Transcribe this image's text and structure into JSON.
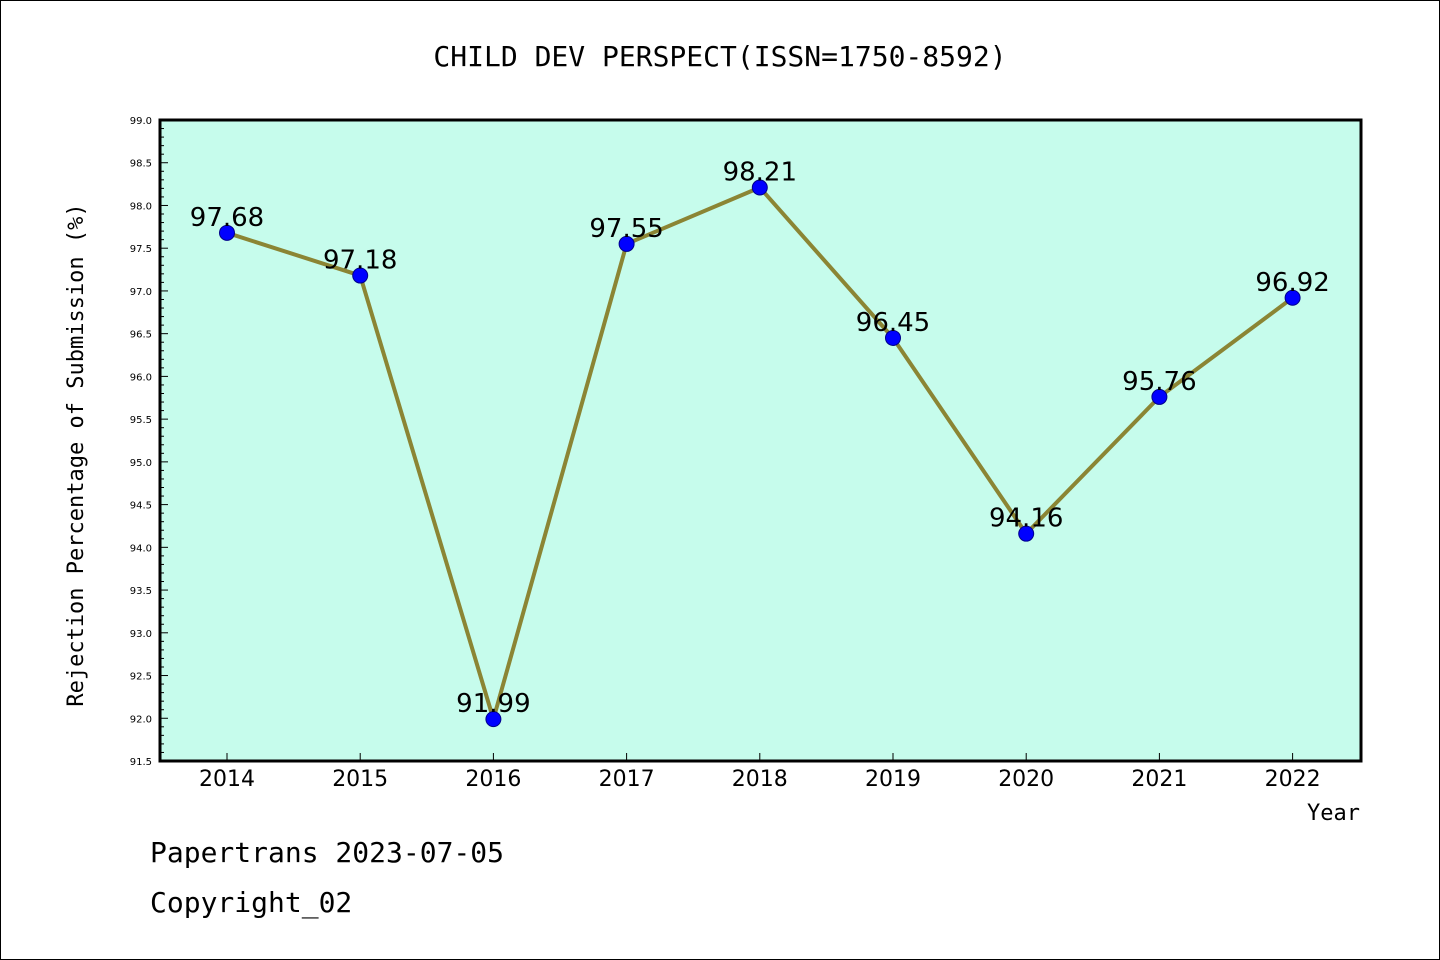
{
  "colors": {
    "plot_background": "#c6fcec",
    "line": "#8b8534",
    "marker": "#0000ff",
    "marker_edge": "#00008b",
    "axis": "#000000"
  },
  "chart_data": {
    "type": "line",
    "title": "CHILD DEV PERSPECT(ISSN=1750-8592)",
    "xlabel": "Year",
    "ylabel": "Rejection Percentage of Submission (%)",
    "categories": [
      "2014",
      "2015",
      "2016",
      "2017",
      "2018",
      "2019",
      "2020",
      "2021",
      "2022"
    ],
    "series": [
      {
        "values": [
          97.68,
          97.18,
          91.99,
          97.55,
          98.21,
          96.45,
          94.16,
          95.76,
          96.92
        ],
        "data_labels": [
          "97.68",
          "97.18",
          "91.99",
          "97.55",
          "98.21",
          "96.45",
          "94.16",
          "95.76",
          "96.92"
        ]
      }
    ],
    "ylim": [
      91.5,
      99.0
    ],
    "yticks": [
      "91.5",
      "92.0",
      "92.5",
      "93.0",
      "93.5",
      "94.0",
      "94.5",
      "95.0",
      "95.5",
      "96.0",
      "96.5",
      "97.0",
      "97.5",
      "98.0",
      "98.5",
      "99.0"
    ],
    "grid": false,
    "legend": "none"
  },
  "footer": {
    "line1": "Papertrans 2023-07-05",
    "line2": "Copyright_02"
  }
}
